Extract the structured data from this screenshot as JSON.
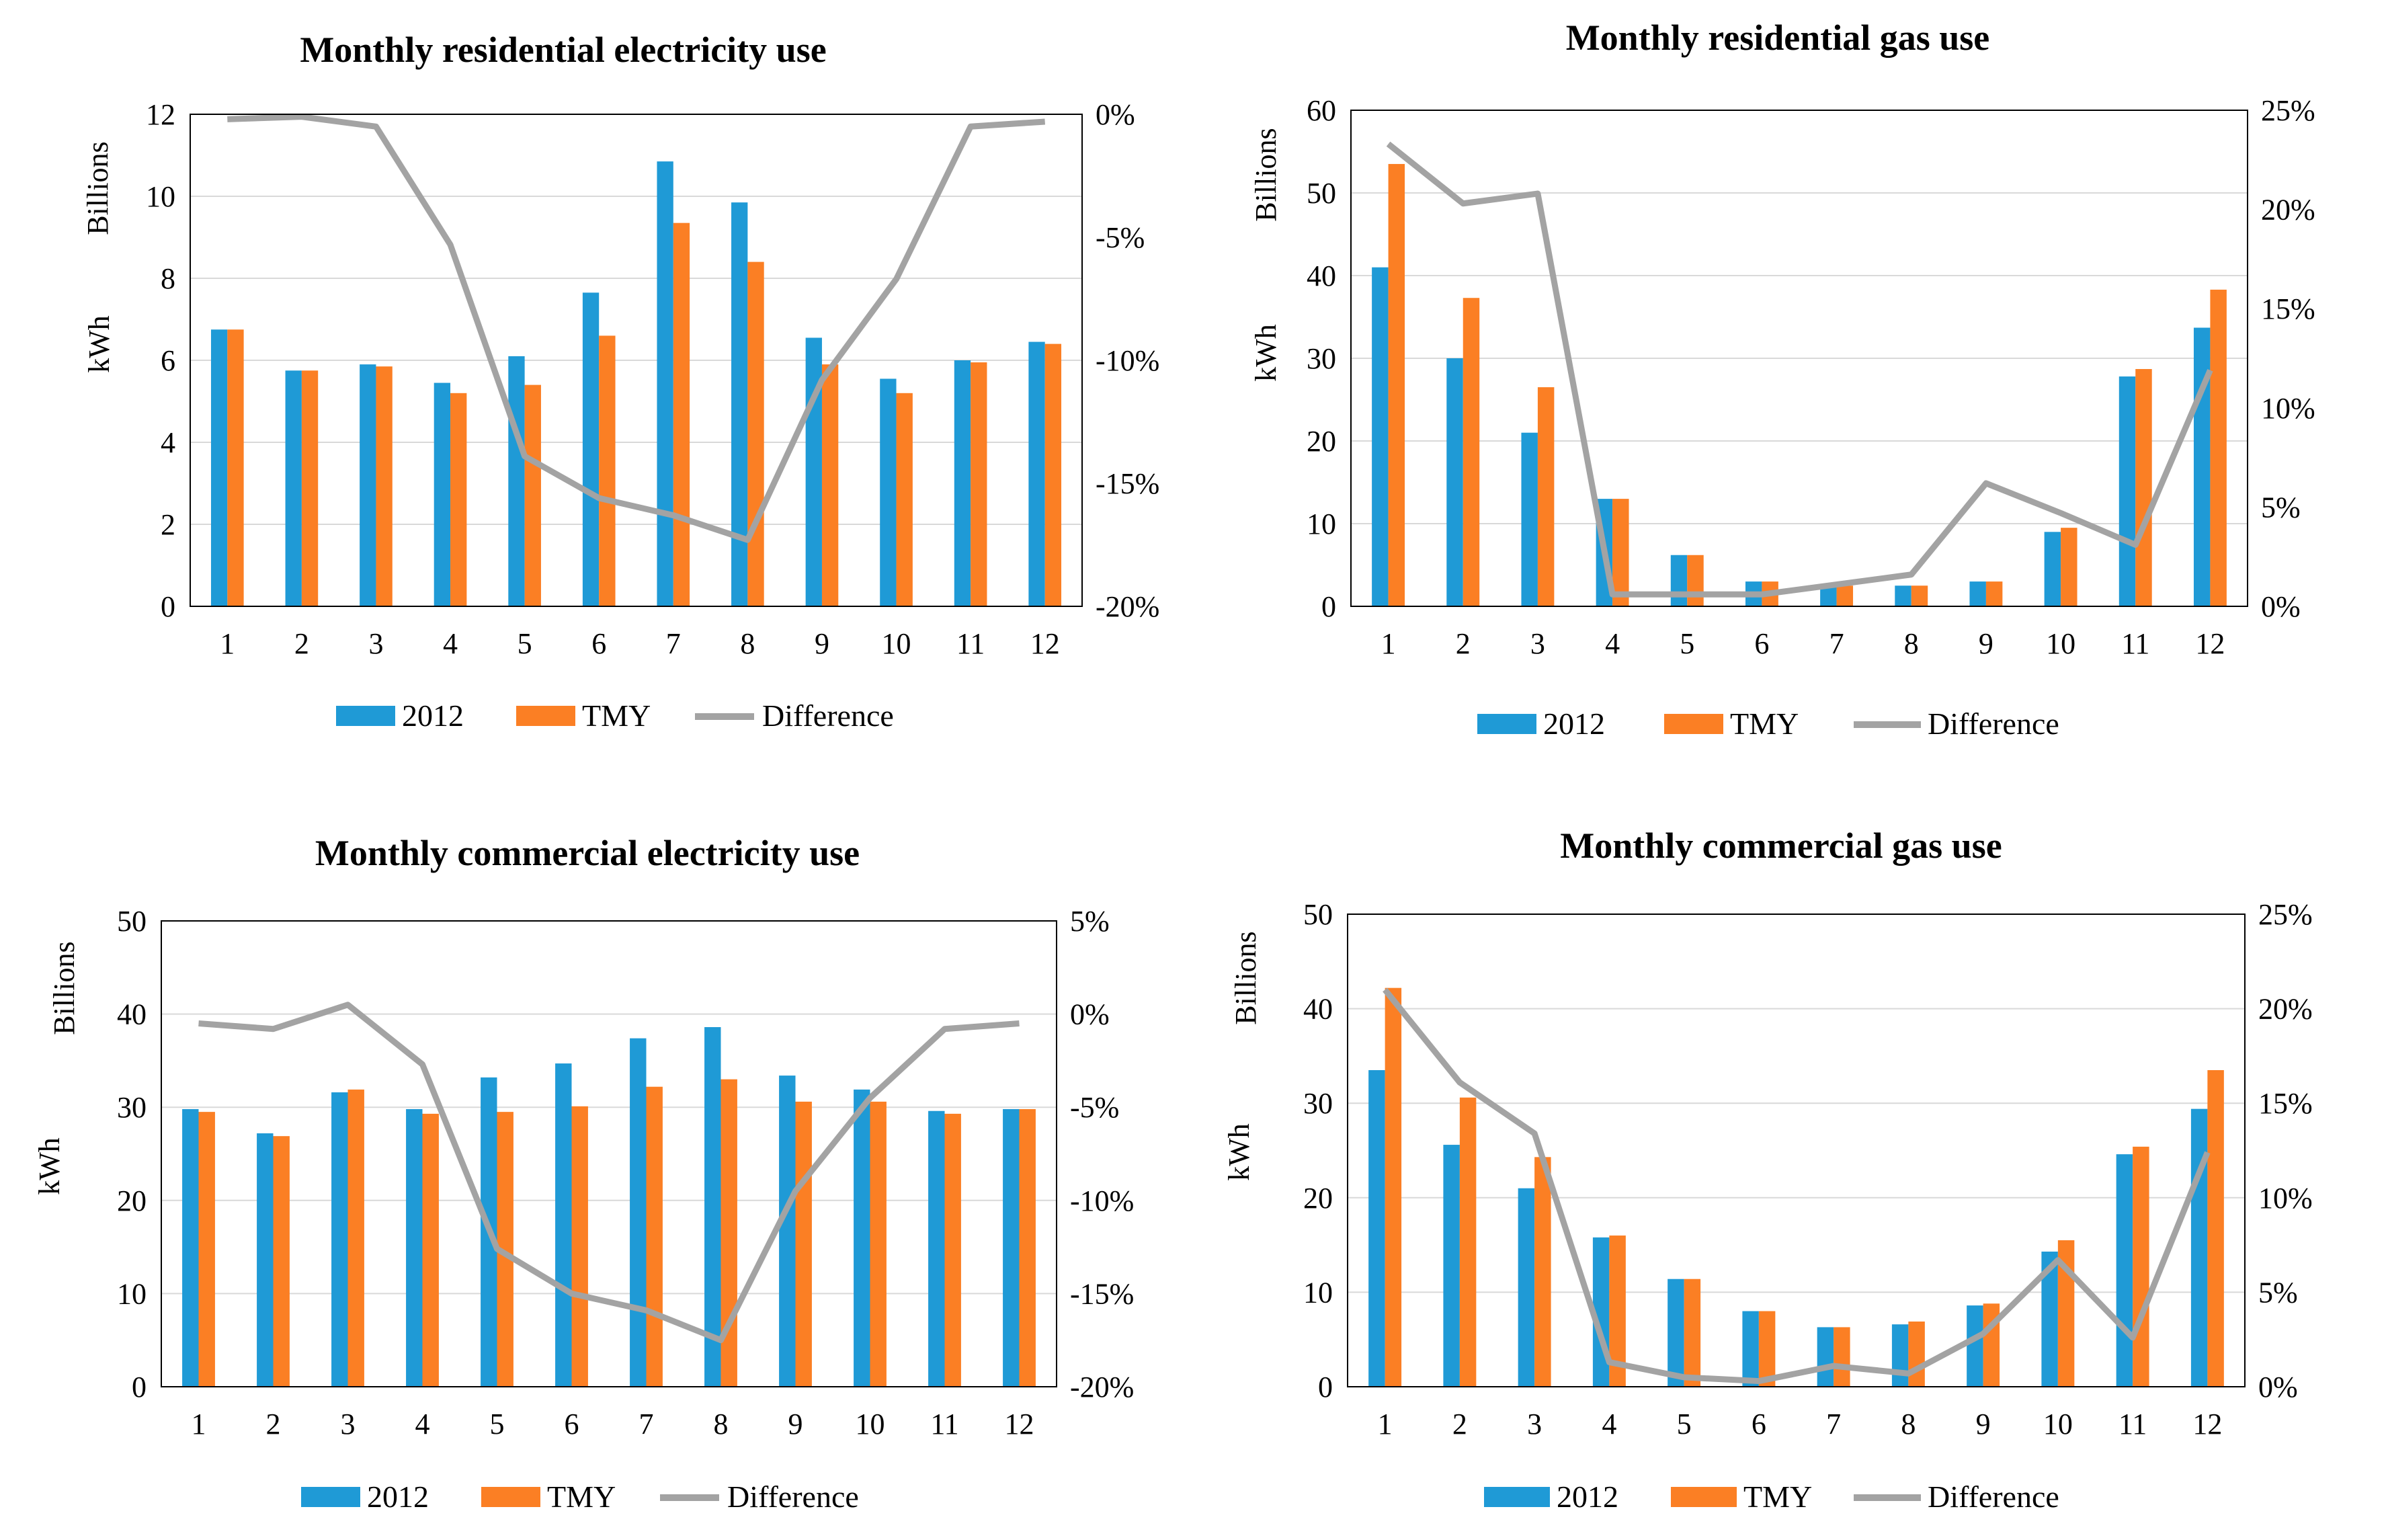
{
  "colors": {
    "y2012": "#1f9ad6",
    "tmy": "#fb7f24",
    "difference": "#a3a3a3"
  },
  "chart_data": [
    {
      "type": "bar",
      "title": "Monthly residential electricity use",
      "ylabel": "kWh",
      "yunit": "Billions",
      "categories": [
        "1",
        "2",
        "3",
        "4",
        "5",
        "6",
        "7",
        "8",
        "9",
        "10",
        "11",
        "12"
      ],
      "ylim": [
        0,
        12
      ],
      "yticks": [
        "0",
        "2",
        "4",
        "6",
        "8",
        "10",
        "12"
      ],
      "y2lim": [
        -20,
        0
      ],
      "y2ticks": [
        "-20%",
        "-15%",
        "-10%",
        "-5%",
        "0%"
      ],
      "series": [
        {
          "name": "2012",
          "values": [
            6.75,
            5.75,
            5.9,
            5.45,
            6.1,
            7.65,
            10.85,
            9.85,
            6.55,
            5.55,
            6.0,
            6.45
          ]
        },
        {
          "name": "TMY",
          "values": [
            6.75,
            5.75,
            5.85,
            5.2,
            5.4,
            6.6,
            9.35,
            8.4,
            5.9,
            5.2,
            5.95,
            6.4
          ]
        },
        {
          "name": "Difference",
          "axis": "secondary",
          "values": [
            -0.2,
            -0.1,
            -0.5,
            -5.3,
            -13.9,
            -15.6,
            -16.3,
            -17.3,
            -10.8,
            -6.7,
            -0.5,
            -0.3
          ]
        }
      ]
    },
    {
      "type": "bar",
      "title": "Monthly residential gas use",
      "ylabel": "kWh",
      "yunit": "Billions",
      "categories": [
        "1",
        "2",
        "3",
        "4",
        "5",
        "6",
        "7",
        "8",
        "9",
        "10",
        "11",
        "12"
      ],
      "ylim": [
        0,
        60
      ],
      "yticks": [
        "0",
        "10",
        "20",
        "30",
        "40",
        "50",
        "60"
      ],
      "y2lim": [
        0,
        25
      ],
      "y2ticks": [
        "0%",
        "5%",
        "10%",
        "15%",
        "20%",
        "25%"
      ],
      "series": [
        {
          "name": "2012",
          "values": [
            41,
            30,
            21,
            13,
            6.2,
            3,
            2.5,
            2.5,
            3,
            9,
            27.8,
            33.7
          ]
        },
        {
          "name": "TMY",
          "values": [
            53.5,
            37.3,
            26.5,
            13,
            6.2,
            3,
            2.5,
            2.5,
            3,
            9.5,
            28.7,
            38.3
          ]
        },
        {
          "name": "Difference",
          "axis": "secondary",
          "values": [
            23.3,
            20.3,
            20.8,
            0.6,
            0.6,
            0.6,
            1.1,
            1.6,
            6.2,
            4.7,
            3.1,
            11.9
          ]
        }
      ]
    },
    {
      "type": "bar",
      "title": "Monthly commercial electricity use",
      "ylabel": "kWh",
      "yunit": "Billions",
      "categories": [
        "1",
        "2",
        "3",
        "4",
        "5",
        "6",
        "7",
        "8",
        "9",
        "10",
        "11",
        "12"
      ],
      "ylim": [
        0,
        50
      ],
      "yticks": [
        "0",
        "10",
        "20",
        "30",
        "40",
        "50"
      ],
      "y2lim": [
        -20,
        5
      ],
      "y2ticks": [
        "-20%",
        "-15%",
        "-10%",
        "-5%",
        "0%",
        "5%"
      ],
      "series": [
        {
          "name": "2012",
          "values": [
            29.8,
            27.2,
            31.6,
            29.8,
            33.2,
            34.7,
            37.4,
            38.6,
            33.4,
            31.9,
            29.6,
            29.8
          ]
        },
        {
          "name": "TMY",
          "values": [
            29.5,
            26.9,
            31.9,
            29.3,
            29.5,
            30.1,
            32.2,
            33,
            30.6,
            30.6,
            29.3,
            29.8
          ]
        },
        {
          "name": "Difference",
          "axis": "secondary",
          "values": [
            -0.5,
            -0.8,
            0.5,
            -2.7,
            -12.6,
            -15,
            -15.9,
            -17.5,
            -9.5,
            -4.5,
            -0.8,
            -0.5
          ]
        }
      ]
    },
    {
      "type": "bar",
      "title": "Monthly commercial gas use",
      "ylabel": "kWh",
      "yunit": "Billions",
      "categories": [
        "1",
        "2",
        "3",
        "4",
        "5",
        "6",
        "7",
        "8",
        "9",
        "10",
        "11",
        "12"
      ],
      "ylim": [
        0,
        50
      ],
      "yticks": [
        "0",
        "10",
        "20",
        "30",
        "40",
        "50"
      ],
      "y2lim": [
        0,
        25
      ],
      "y2ticks": [
        "0%",
        "5%",
        "10%",
        "15%",
        "20%",
        "25%"
      ],
      "series": [
        {
          "name": "2012",
          "values": [
            33.5,
            25.6,
            21,
            15.8,
            11.4,
            8,
            6.3,
            6.6,
            8.6,
            14.3,
            24.6,
            29.4
          ]
        },
        {
          "name": "TMY",
          "values": [
            42.2,
            30.6,
            24.3,
            16,
            11.4,
            8,
            6.3,
            6.9,
            8.8,
            15.5,
            25.4,
            33.5
          ]
        },
        {
          "name": "Difference",
          "axis": "secondary",
          "values": [
            21,
            16.1,
            13.4,
            1.3,
            0.5,
            0.3,
            1.1,
            0.7,
            2.8,
            6.7,
            2.6,
            12.4
          ]
        }
      ]
    }
  ]
}
